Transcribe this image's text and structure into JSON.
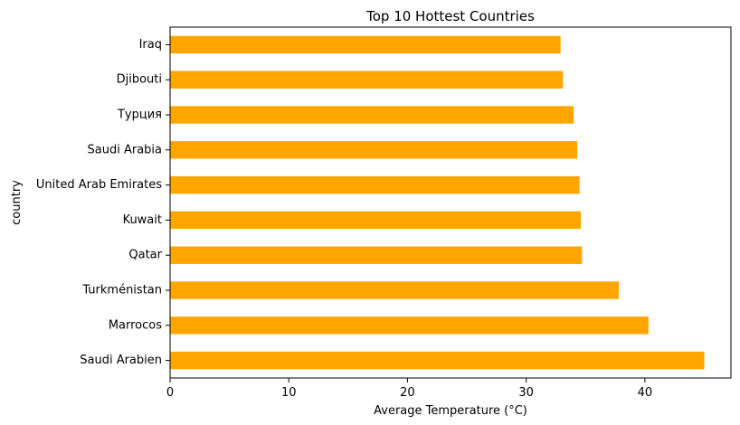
{
  "chart_data": {
    "type": "bar",
    "orientation": "horizontal",
    "title": "Top 10 Hottest Countries",
    "xlabel": "Average Temperature (°C)",
    "ylabel": "country",
    "categories": [
      "Saudi Arabien",
      "Marrocos",
      "Turkménistan",
      "Qatar",
      "Kuwait",
      "United Arab Emirates",
      "Saudi Arabia",
      "Турция",
      "Djibouti",
      "Iraq"
    ],
    "values": [
      45.0,
      40.3,
      37.8,
      34.7,
      34.6,
      34.5,
      34.3,
      34.0,
      33.1,
      32.9
    ],
    "xlim": [
      0,
      47.25
    ],
    "xticks": [
      0,
      10,
      20,
      30,
      40
    ],
    "bar_color": "#ffa500",
    "grid": false,
    "legend": "none"
  }
}
